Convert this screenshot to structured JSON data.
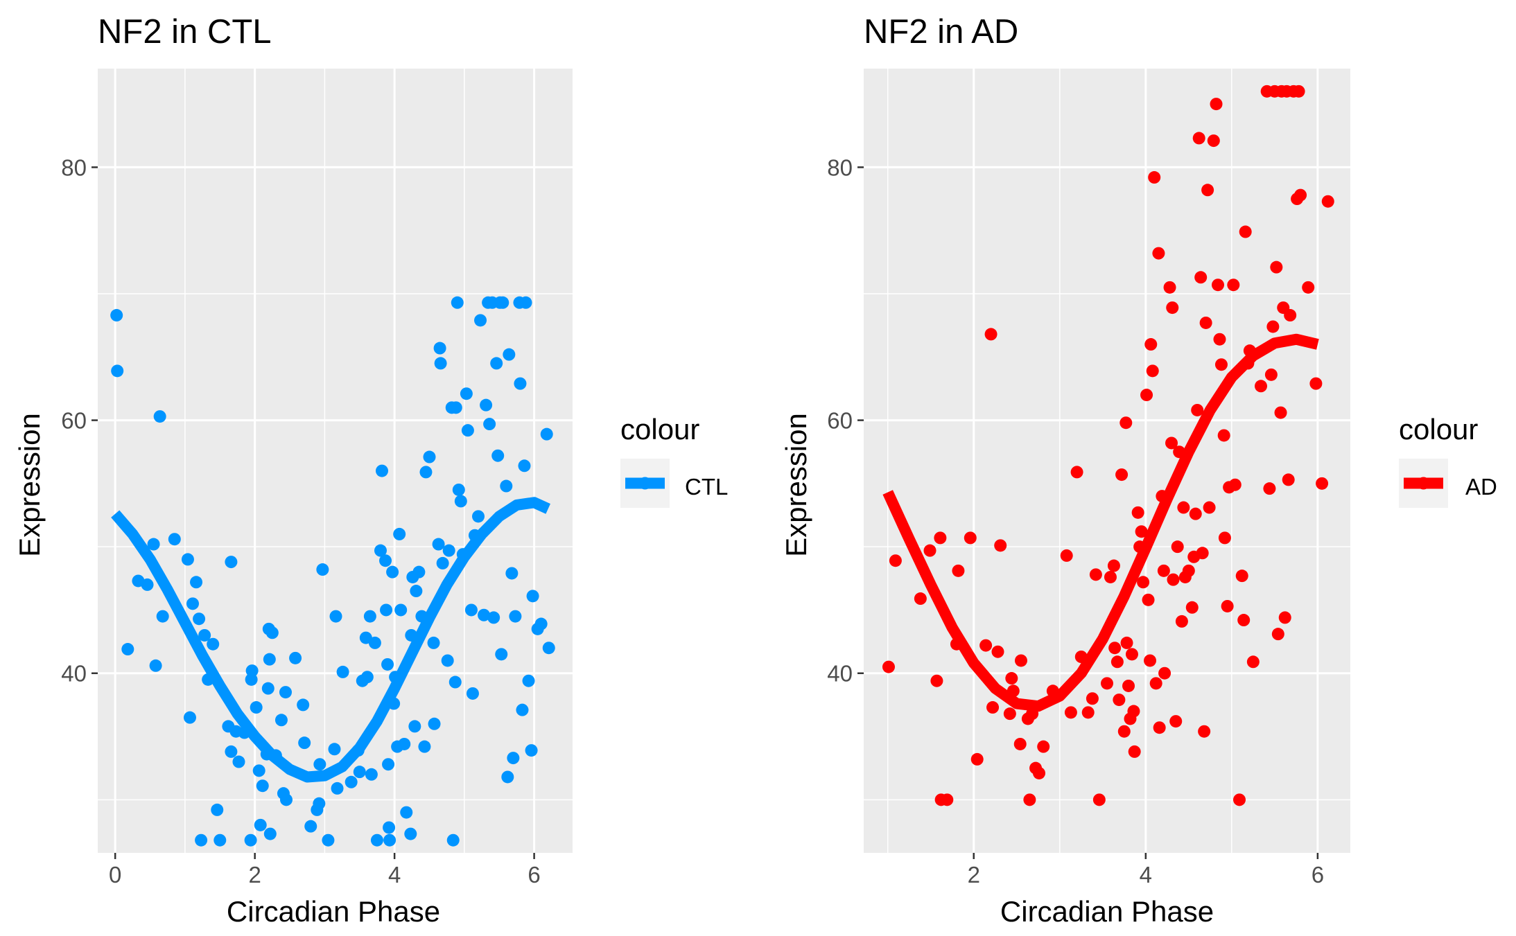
{
  "chart_data": [
    {
      "type": "scatter",
      "title": "NF2 in CTL",
      "xlabel": "Circadian Phase",
      "ylabel": "Expression",
      "xlim": [
        -0.25,
        6.55
      ],
      "ylim": [
        25.8,
        87.8
      ],
      "xticks": [
        0,
        2,
        4,
        6
      ],
      "yticks": [
        40,
        60,
        80
      ],
      "x_minor": [
        1,
        3,
        5
      ],
      "y_minor": [
        30,
        50,
        70
      ],
      "grid": true,
      "legend": {
        "title": "colour",
        "label": "CTL",
        "position": "right"
      },
      "color": "#0094ff",
      "points": [
        [
          0.02,
          68.3
        ],
        [
          0.03,
          63.9
        ],
        [
          0.18,
          41.9
        ],
        [
          0.33,
          47.3
        ],
        [
          0.46,
          47.0
        ],
        [
          0.55,
          50.2
        ],
        [
          0.58,
          40.6
        ],
        [
          0.64,
          60.3
        ],
        [
          0.68,
          44.5
        ],
        [
          0.85,
          50.6
        ],
        [
          1.04,
          49.0
        ],
        [
          1.07,
          36.5
        ],
        [
          1.11,
          45.5
        ],
        [
          1.16,
          47.2
        ],
        [
          1.2,
          44.3
        ],
        [
          1.23,
          26.8
        ],
        [
          1.28,
          43.0
        ],
        [
          1.33,
          39.5
        ],
        [
          1.4,
          42.3
        ],
        [
          1.46,
          29.2
        ],
        [
          1.5,
          26.8
        ],
        [
          1.62,
          35.8
        ],
        [
          1.66,
          48.8
        ],
        [
          1.66,
          33.8
        ],
        [
          1.73,
          35.4
        ],
        [
          1.77,
          33.0
        ],
        [
          1.85,
          35.3
        ],
        [
          1.94,
          26.8
        ],
        [
          1.95,
          39.5
        ],
        [
          1.96,
          40.2
        ],
        [
          2.02,
          37.3
        ],
        [
          2.06,
          32.3
        ],
        [
          2.08,
          28.0
        ],
        [
          2.11,
          31.1
        ],
        [
          2.17,
          33.6
        ],
        [
          2.19,
          38.8
        ],
        [
          2.2,
          43.5
        ],
        [
          2.21,
          41.1
        ],
        [
          2.25,
          43.2
        ],
        [
          2.22,
          27.3
        ],
        [
          2.3,
          33.5
        ],
        [
          2.38,
          36.3
        ],
        [
          2.41,
          30.5
        ],
        [
          2.44,
          38.5
        ],
        [
          2.45,
          30.0
        ],
        [
          2.58,
          41.2
        ],
        [
          2.69,
          37.5
        ],
        [
          2.71,
          34.5
        ],
        [
          2.8,
          27.9
        ],
        [
          2.89,
          29.2
        ],
        [
          2.92,
          29.7
        ],
        [
          2.93,
          32.8
        ],
        [
          2.97,
          48.2
        ],
        [
          3.05,
          26.8
        ],
        [
          3.16,
          44.5
        ],
        [
          3.14,
          34.0
        ],
        [
          3.18,
          30.9
        ],
        [
          3.26,
          40.1
        ],
        [
          3.38,
          31.4
        ],
        [
          3.48,
          33.9
        ],
        [
          3.5,
          32.2
        ],
        [
          3.54,
          39.4
        ],
        [
          3.59,
          42.8
        ],
        [
          3.61,
          39.7
        ],
        [
          3.65,
          44.5
        ],
        [
          3.67,
          32.0
        ],
        [
          3.72,
          42.4
        ],
        [
          3.75,
          26.8
        ],
        [
          3.8,
          49.7
        ],
        [
          3.82,
          56.0
        ],
        [
          3.87,
          48.9
        ],
        [
          3.88,
          45.0
        ],
        [
          3.9,
          40.7
        ],
        [
          3.91,
          32.8
        ],
        [
          3.92,
          27.8
        ],
        [
          3.93,
          26.8
        ],
        [
          3.97,
          48.0
        ],
        [
          3.99,
          37.6
        ],
        [
          4.01,
          39.7
        ],
        [
          4.04,
          34.2
        ],
        [
          4.07,
          51.0
        ],
        [
          4.09,
          45.0
        ],
        [
          4.14,
          34.4
        ],
        [
          4.17,
          29.0
        ],
        [
          4.23,
          27.3
        ],
        [
          4.24,
          43.0
        ],
        [
          4.26,
          47.6
        ],
        [
          4.29,
          35.8
        ],
        [
          4.31,
          46.5
        ],
        [
          4.35,
          48.0
        ],
        [
          4.39,
          44.5
        ],
        [
          4.43,
          34.2
        ],
        [
          4.45,
          55.9
        ],
        [
          4.5,
          57.1
        ],
        [
          4.56,
          42.4
        ],
        [
          4.57,
          36.0
        ],
        [
          4.63,
          50.2
        ],
        [
          4.65,
          65.7
        ],
        [
          4.66,
          64.5
        ],
        [
          4.69,
          48.7
        ],
        [
          4.76,
          41.0
        ],
        [
          4.78,
          49.7
        ],
        [
          4.82,
          61.0
        ],
        [
          4.84,
          26.8
        ],
        [
          4.87,
          39.3
        ],
        [
          4.88,
          61.0
        ],
        [
          4.9,
          69.3
        ],
        [
          4.92,
          54.5
        ],
        [
          4.95,
          53.6
        ],
        [
          4.98,
          49.4
        ],
        [
          5.03,
          62.1
        ],
        [
          5.05,
          59.2
        ],
        [
          5.1,
          45.0
        ],
        [
          5.12,
          38.4
        ],
        [
          5.15,
          50.9
        ],
        [
          5.2,
          52.4
        ],
        [
          5.23,
          67.9
        ],
        [
          5.28,
          44.6
        ],
        [
          5.31,
          61.2
        ],
        [
          5.34,
          69.3
        ],
        [
          5.36,
          59.7
        ],
        [
          5.4,
          69.3
        ],
        [
          5.42,
          44.4
        ],
        [
          5.46,
          64.5
        ],
        [
          5.48,
          57.2
        ],
        [
          5.51,
          69.3
        ],
        [
          5.53,
          41.5
        ],
        [
          5.55,
          69.3
        ],
        [
          5.6,
          54.8
        ],
        [
          5.62,
          31.8
        ],
        [
          5.64,
          65.2
        ],
        [
          5.68,
          47.9
        ],
        [
          5.7,
          33.3
        ],
        [
          5.73,
          44.5
        ],
        [
          5.79,
          69.3
        ],
        [
          5.8,
          62.9
        ],
        [
          5.83,
          37.1
        ],
        [
          5.86,
          56.4
        ],
        [
          5.88,
          69.3
        ],
        [
          5.92,
          39.4
        ],
        [
          5.96,
          33.9
        ],
        [
          5.98,
          46.1
        ],
        [
          6.05,
          43.5
        ],
        [
          6.1,
          43.9
        ],
        [
          6.18,
          58.9
        ],
        [
          6.21,
          42.0
        ]
      ],
      "fit_curve": [
        [
          0.0,
          52.6
        ],
        [
          0.25,
          51.0
        ],
        [
          0.5,
          49.0
        ],
        [
          0.75,
          46.6
        ],
        [
          1.0,
          44.0
        ],
        [
          1.25,
          41.4
        ],
        [
          1.5,
          39.0
        ],
        [
          1.75,
          36.8
        ],
        [
          2.0,
          35.0
        ],
        [
          2.25,
          33.5
        ],
        [
          2.5,
          32.4
        ],
        [
          2.75,
          31.8
        ],
        [
          3.0,
          31.9
        ],
        [
          3.25,
          32.6
        ],
        [
          3.5,
          34.1
        ],
        [
          3.75,
          36.2
        ],
        [
          4.0,
          38.8
        ],
        [
          4.25,
          41.6
        ],
        [
          4.5,
          44.4
        ],
        [
          4.75,
          47.0
        ],
        [
          5.0,
          49.2
        ],
        [
          5.25,
          51.0
        ],
        [
          5.5,
          52.4
        ],
        [
          5.75,
          53.3
        ],
        [
          6.0,
          53.5
        ],
        [
          6.2,
          53.0
        ]
      ]
    },
    {
      "type": "scatter",
      "title": "NF2 in AD",
      "xlabel": "Circadian Phase",
      "ylabel": "Expression",
      "xlim": [
        0.72,
        6.38
      ],
      "ylim": [
        25.8,
        87.8
      ],
      "xticks": [
        2,
        4,
        6
      ],
      "yticks": [
        40,
        60,
        80
      ],
      "x_minor": [
        1,
        3,
        5
      ],
      "y_minor": [
        30,
        50,
        70
      ],
      "grid": true,
      "legend": {
        "title": "colour",
        "label": "AD",
        "position": "right"
      },
      "color": "#ff0000",
      "points": [
        [
          1.01,
          40.5
        ],
        [
          1.09,
          48.9
        ],
        [
          1.38,
          45.9
        ],
        [
          1.49,
          49.7
        ],
        [
          1.57,
          39.4
        ],
        [
          1.61,
          50.7
        ],
        [
          1.62,
          30.0
        ],
        [
          1.69,
          30.0
        ],
        [
          1.8,
          42.3
        ],
        [
          1.82,
          48.1
        ],
        [
          1.96,
          50.7
        ],
        [
          2.04,
          33.2
        ],
        [
          2.14,
          42.2
        ],
        [
          2.2,
          66.8
        ],
        [
          2.22,
          37.3
        ],
        [
          2.28,
          41.7
        ],
        [
          2.31,
          50.1
        ],
        [
          2.42,
          36.8
        ],
        [
          2.44,
          39.6
        ],
        [
          2.46,
          38.6
        ],
        [
          2.54,
          34.4
        ],
        [
          2.55,
          41.0
        ],
        [
          2.63,
          36.4
        ],
        [
          2.65,
          30.0
        ],
        [
          2.68,
          36.8
        ],
        [
          2.72,
          32.5
        ],
        [
          2.76,
          32.1
        ],
        [
          2.81,
          34.2
        ],
        [
          2.92,
          38.6
        ],
        [
          3.08,
          49.3
        ],
        [
          3.13,
          36.9
        ],
        [
          3.2,
          55.9
        ],
        [
          3.25,
          41.3
        ],
        [
          3.33,
          36.9
        ],
        [
          3.38,
          38.0
        ],
        [
          3.42,
          47.8
        ],
        [
          3.46,
          30.0
        ],
        [
          3.55,
          39.2
        ],
        [
          3.59,
          47.6
        ],
        [
          3.63,
          48.5
        ],
        [
          3.64,
          42.0
        ],
        [
          3.67,
          40.9
        ],
        [
          3.69,
          37.9
        ],
        [
          3.72,
          55.7
        ],
        [
          3.75,
          35.4
        ],
        [
          3.77,
          59.8
        ],
        [
          3.78,
          42.4
        ],
        [
          3.8,
          39.0
        ],
        [
          3.82,
          36.4
        ],
        [
          3.84,
          41.5
        ],
        [
          3.86,
          37.0
        ],
        [
          3.87,
          33.8
        ],
        [
          3.91,
          52.7
        ],
        [
          3.93,
          50.0
        ],
        [
          3.95,
          51.2
        ],
        [
          3.97,
          47.2
        ],
        [
          4.01,
          62.0
        ],
        [
          4.03,
          45.8
        ],
        [
          4.05,
          41.0
        ],
        [
          4.06,
          66.0
        ],
        [
          4.08,
          63.9
        ],
        [
          4.1,
          79.2
        ],
        [
          4.12,
          39.2
        ],
        [
          4.15,
          73.2
        ],
        [
          4.16,
          35.7
        ],
        [
          4.19,
          54.0
        ],
        [
          4.21,
          48.1
        ],
        [
          4.22,
          40.0
        ],
        [
          4.28,
          70.5
        ],
        [
          4.3,
          58.2
        ],
        [
          4.31,
          68.9
        ],
        [
          4.32,
          47.4
        ],
        [
          4.35,
          36.2
        ],
        [
          4.37,
          50.0
        ],
        [
          4.39,
          57.5
        ],
        [
          4.42,
          44.1
        ],
        [
          4.44,
          53.1
        ],
        [
          4.46,
          47.6
        ],
        [
          4.5,
          48.1
        ],
        [
          4.54,
          45.2
        ],
        [
          4.56,
          49.2
        ],
        [
          4.58,
          52.6
        ],
        [
          4.6,
          60.8
        ],
        [
          4.62,
          82.3
        ],
        [
          4.64,
          71.3
        ],
        [
          4.66,
          49.5
        ],
        [
          4.68,
          35.4
        ],
        [
          4.7,
          67.7
        ],
        [
          4.72,
          78.2
        ],
        [
          4.74,
          53.1
        ],
        [
          4.79,
          82.1
        ],
        [
          4.82,
          85.0
        ],
        [
          4.84,
          70.7
        ],
        [
          4.86,
          66.4
        ],
        [
          4.88,
          64.4
        ],
        [
          4.91,
          58.8
        ],
        [
          4.92,
          50.7
        ],
        [
          4.95,
          45.3
        ],
        [
          4.97,
          54.7
        ],
        [
          5.02,
          70.7
        ],
        [
          5.04,
          54.9
        ],
        [
          5.09,
          30.0
        ],
        [
          5.12,
          47.7
        ],
        [
          5.14,
          44.2
        ],
        [
          5.16,
          74.9
        ],
        [
          5.19,
          64.5
        ],
        [
          5.21,
          65.5
        ],
        [
          5.25,
          40.9
        ],
        [
          5.34,
          62.7
        ],
        [
          5.41,
          86.0
        ],
        [
          5.44,
          54.6
        ],
        [
          5.46,
          63.6
        ],
        [
          5.48,
          67.4
        ],
        [
          5.5,
          86.0
        ],
        [
          5.52,
          72.1
        ],
        [
          5.54,
          43.1
        ],
        [
          5.57,
          60.6
        ],
        [
          5.58,
          86.0
        ],
        [
          5.6,
          68.9
        ],
        [
          5.62,
          44.4
        ],
        [
          5.64,
          86.0
        ],
        [
          5.66,
          55.3
        ],
        [
          5.68,
          68.3
        ],
        [
          5.72,
          86.0
        ],
        [
          5.76,
          77.5
        ],
        [
          5.78,
          86.0
        ],
        [
          5.8,
          77.8
        ],
        [
          5.89,
          70.5
        ],
        [
          5.98,
          62.9
        ],
        [
          6.05,
          55.0
        ],
        [
          6.12,
          77.3
        ]
      ],
      "fit_curve": [
        [
          1.0,
          54.3
        ],
        [
          1.25,
          50.6
        ],
        [
          1.5,
          47.0
        ],
        [
          1.75,
          43.6
        ],
        [
          2.0,
          40.8
        ],
        [
          2.25,
          38.8
        ],
        [
          2.5,
          37.6
        ],
        [
          2.75,
          37.4
        ],
        [
          3.0,
          38.2
        ],
        [
          3.25,
          40.0
        ],
        [
          3.5,
          42.7
        ],
        [
          3.75,
          46.1
        ],
        [
          4.0,
          49.9
        ],
        [
          4.25,
          53.8
        ],
        [
          4.5,
          57.5
        ],
        [
          4.75,
          60.8
        ],
        [
          5.0,
          63.4
        ],
        [
          5.25,
          65.1
        ],
        [
          5.5,
          66.1
        ],
        [
          5.75,
          66.4
        ],
        [
          6.0,
          66.0
        ]
      ]
    }
  ]
}
